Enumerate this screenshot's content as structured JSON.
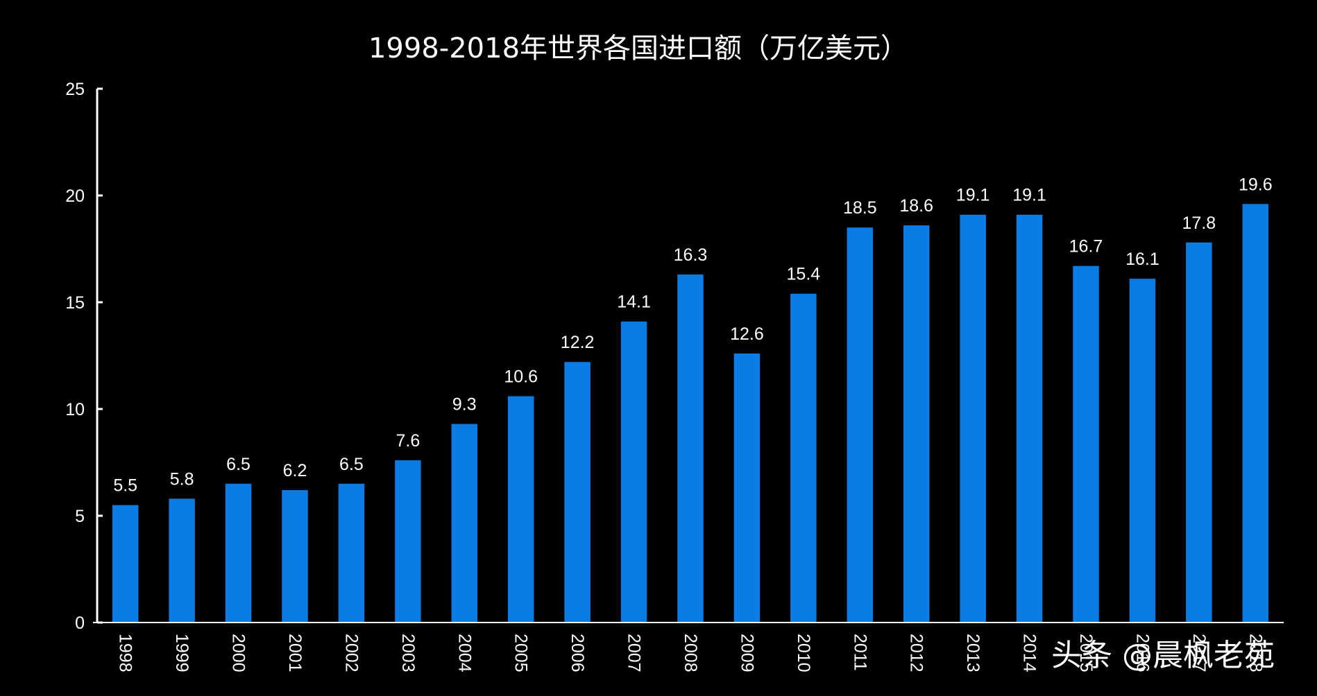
{
  "chart_data": {
    "type": "bar",
    "title": "1998-2018年世界各国进口额（万亿美元）",
    "xlabel": "",
    "ylabel": "",
    "categories": [
      "1998",
      "1999",
      "2000",
      "2001",
      "2002",
      "2003",
      "2004",
      "2005",
      "2006",
      "2007",
      "2008",
      "2009",
      "2010",
      "2011",
      "2012",
      "2013",
      "2014",
      "2015",
      "2016",
      "2017",
      "2018"
    ],
    "values": [
      5.5,
      5.8,
      6.5,
      6.2,
      6.5,
      7.6,
      9.3,
      10.6,
      12.2,
      14.1,
      16.3,
      12.6,
      15.4,
      18.5,
      18.6,
      19.1,
      19.1,
      16.7,
      16.1,
      17.8,
      19.6
    ],
    "data_labels": [
      "5.5",
      "5.8",
      "6.5",
      "6.2",
      "6.5",
      "7.6",
      "9.3",
      "10.6",
      "12.2",
      "14.1",
      "16.3",
      "12.6",
      "15.4",
      "18.5",
      "18.6",
      "19.1",
      "19.1",
      "16.7",
      "16.1",
      "17.8",
      "19.6"
    ],
    "ylim": [
      0,
      25
    ],
    "yticks": [
      0,
      5,
      10,
      15,
      20,
      25
    ],
    "ytick_labels": [
      "0",
      "5",
      "10",
      "15",
      "20",
      "25"
    ],
    "grid": false,
    "legend": "none",
    "bar_color": "#0a7ce6",
    "background_color": "#000000",
    "text_color": "#ffffff"
  },
  "watermark": {
    "text": "头条 @晨枫老苑"
  }
}
